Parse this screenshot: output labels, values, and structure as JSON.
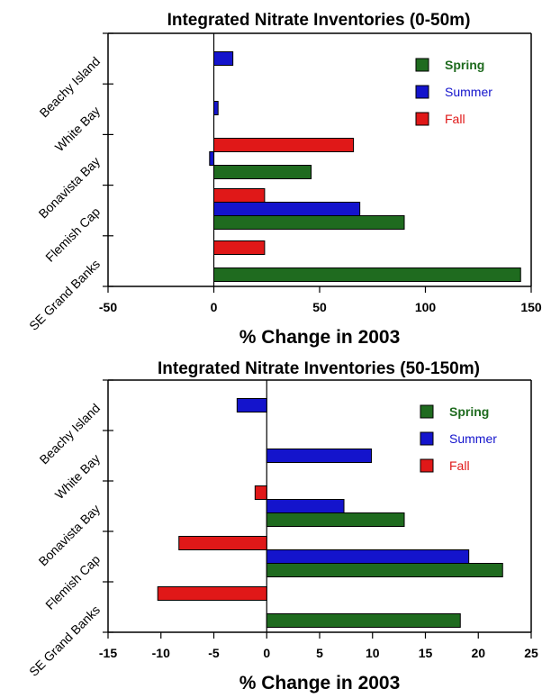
{
  "chart_data": [
    {
      "type": "bar",
      "orientation": "horizontal",
      "title": "Integrated Nitrate Inventories (0-50m)",
      "xlabel": "% Change in 2003",
      "ylabel": "",
      "xlim": [
        -50,
        150
      ],
      "xticks": [
        -50,
        0,
        50,
        100,
        150
      ],
      "categories": [
        "Beachy Island",
        "White Bay",
        "Bonavista Bay",
        "Flemish Cap",
        "SE Grand Banks"
      ],
      "series": [
        {
          "name": "Spring",
          "color": "#1f6b1f",
          "values": [
            null,
            null,
            46,
            90,
            145
          ]
        },
        {
          "name": "Summer",
          "color": "#1414cc",
          "values": [
            9,
            2,
            -2,
            69,
            null
          ]
        },
        {
          "name": "Fall",
          "color": "#e01818",
          "values": [
            null,
            null,
            66,
            24,
            24
          ]
        }
      ],
      "legend_position": "top-right",
      "grid": false
    },
    {
      "type": "bar",
      "orientation": "horizontal",
      "title": "Integrated Nitrate Inventories (50-150m)",
      "xlabel": "% Change in 2003",
      "ylabel": "",
      "xlim": [
        -15,
        25
      ],
      "xticks": [
        -15,
        -10,
        -5,
        0,
        5,
        10,
        15,
        20,
        25
      ],
      "categories": [
        "Beachy Island",
        "White Bay",
        "Bonavista Bay",
        "Flemish Cap",
        "SE Grand Banks"
      ],
      "series": [
        {
          "name": "Spring",
          "color": "#1f6b1f",
          "values": [
            null,
            null,
            13,
            22.3,
            18.3
          ]
        },
        {
          "name": "Summer",
          "color": "#1414cc",
          "values": [
            -2.8,
            9.9,
            7.3,
            19.1,
            null
          ]
        },
        {
          "name": "Fall",
          "color": "#e01818",
          "values": [
            null,
            null,
            -1.1,
            -8.3,
            -10.3
          ]
        }
      ],
      "legend_position": "top-right",
      "grid": false
    }
  ]
}
